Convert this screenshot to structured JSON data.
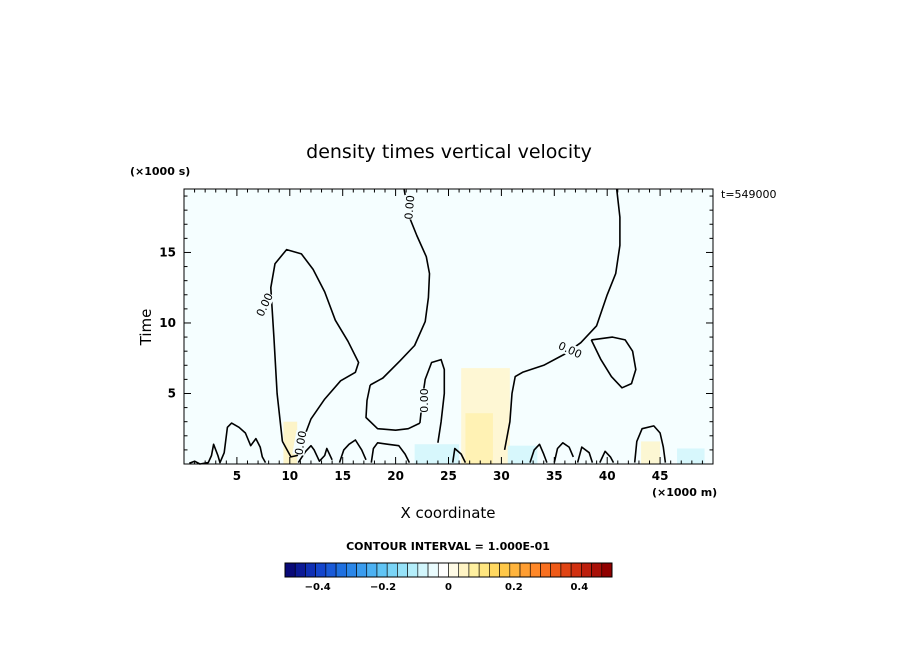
{
  "chart_data": {
    "type": "contour",
    "title": "density times vertical velocity",
    "xlabel": "X coordinate",
    "ylabel": "Time",
    "x_unit": "(×1000 m)",
    "y_unit": "(×1000 s)",
    "time_label": "t=549000",
    "xlim": [
      0,
      50
    ],
    "ylim": [
      0,
      19.5
    ],
    "x_ticks": [
      5,
      10,
      15,
      20,
      25,
      30,
      35,
      40,
      45
    ],
    "y_ticks": [
      5,
      10,
      15
    ],
    "x_tick_labels": [
      "5",
      "10",
      "15",
      "20",
      "25",
      "30",
      "35",
      "40",
      "45"
    ],
    "y_tick_labels": [
      "5",
      "10",
      "15"
    ],
    "contour_level_label": "0.00",
    "contour_interval_label": "CONTOUR INTERVAL = 1.000E-01",
    "background_color": "#f5feff",
    "colorbar": {
      "range": [
        -0.5,
        0.5
      ],
      "tick_values": [
        -0.4,
        -0.2,
        0,
        0.2,
        0.4
      ],
      "tick_labels": [
        "−0.4",
        "−0.2",
        "0",
        "0.2",
        "0.4"
      ],
      "colors": [
        "#0a0a78",
        "#0c1a96",
        "#0f2fb4",
        "#1445cc",
        "#1a5ad8",
        "#1f70e0",
        "#2a86e8",
        "#3a9cee",
        "#4cb1f2",
        "#60c4f4",
        "#7ad4f6",
        "#96e2f8",
        "#b4eefa",
        "#d2f6fc",
        "#eafcfe",
        "#ffffff",
        "#fffbe6",
        "#fff4c4",
        "#fff0a0",
        "#ffe680",
        "#ffd860",
        "#ffc848",
        "#ffb43c",
        "#ff9e32",
        "#ff8828",
        "#f87020",
        "#ee5a18",
        "#e04414",
        "#d03010",
        "#bc1e0c",
        "#a81008",
        "#900000"
      ]
    },
    "contours": [
      {
        "level": 0,
        "points": [
          [
            9.3,
            1.6
          ],
          [
            8.8,
            5
          ],
          [
            8.5,
            9
          ],
          [
            8.2,
            12.5
          ],
          [
            8.6,
            14.2
          ],
          [
            9.7,
            15.2
          ],
          [
            11.1,
            14.9
          ],
          [
            12.2,
            13.8
          ],
          [
            13.3,
            12.2
          ],
          [
            14.3,
            10.2
          ],
          [
            15.5,
            8.7
          ],
          [
            16.5,
            7.2
          ],
          [
            16.2,
            6.5
          ],
          [
            14.8,
            5.9
          ],
          [
            13.3,
            4.6
          ],
          [
            12,
            3.2
          ],
          [
            11.2,
            1.6
          ],
          [
            10.7,
            0.6
          ],
          [
            10.1,
            0.5
          ],
          [
            9.3,
            1.6
          ]
        ]
      },
      {
        "level": 0,
        "points": [
          [
            17.6,
            5.6
          ],
          [
            18.8,
            6.1
          ],
          [
            20.4,
            7.3
          ],
          [
            21.8,
            8.4
          ],
          [
            22.8,
            10.1
          ],
          [
            23.1,
            11.8
          ],
          [
            23.2,
            13.5
          ],
          [
            22.9,
            14.7
          ],
          [
            22.0,
            16.2
          ],
          [
            21.2,
            17.7
          ],
          [
            20.8,
            19.5
          ]
        ]
      },
      {
        "level": 0,
        "points": [
          [
            17.6,
            5.6
          ],
          [
            17.3,
            4.5
          ],
          [
            17.2,
            3.3
          ],
          [
            18.3,
            2.5
          ],
          [
            20.0,
            2.4
          ],
          [
            21.2,
            2.5
          ],
          [
            22.3,
            2.9
          ]
        ]
      },
      {
        "level": 0,
        "points": [
          [
            22.3,
            2.9
          ],
          [
            22.6,
            5.0
          ],
          [
            22.8,
            6.0
          ],
          [
            23.4,
            7.2
          ],
          [
            24.3,
            7.4
          ],
          [
            24.6,
            6.7
          ],
          [
            24.6,
            5.0
          ],
          [
            24.3,
            3.0
          ],
          [
            24.0,
            1.5
          ]
        ]
      },
      {
        "level": 0,
        "points": [
          [
            30.3,
            1.0
          ],
          [
            30.8,
            3.0
          ],
          [
            31.0,
            5.0
          ],
          [
            31.3,
            6.2
          ],
          [
            32.0,
            6.5
          ],
          [
            34.0,
            7.0
          ],
          [
            36.0,
            7.8
          ],
          [
            37.5,
            8.6
          ],
          [
            39.0,
            9.8
          ],
          [
            40.0,
            12.0
          ],
          [
            40.8,
            13.5
          ],
          [
            41.2,
            15.5
          ],
          [
            41.2,
            17.5
          ],
          [
            40.9,
            19.5
          ]
        ]
      },
      {
        "level": 0,
        "points": [
          [
            38.5,
            8.8
          ],
          [
            39.4,
            7.4
          ],
          [
            40.4,
            6.2
          ],
          [
            41.4,
            5.4
          ],
          [
            42.3,
            5.7
          ],
          [
            42.7,
            6.7
          ],
          [
            42.4,
            8.0
          ],
          [
            41.7,
            8.8
          ],
          [
            40.5,
            9.0
          ],
          [
            38.5,
            8.8
          ]
        ]
      },
      {
        "level": 0,
        "points": [
          [
            0.5,
            0.05
          ],
          [
            1.0,
            0.2
          ],
          [
            1.5,
            0
          ],
          [
            2.3,
            0.1
          ],
          [
            2.6,
            0.6
          ],
          [
            2.8,
            1.4
          ],
          [
            3.2,
            0.6
          ],
          [
            3.4,
            0.1
          ],
          [
            3.8,
            0.8
          ],
          [
            4.1,
            2.6
          ],
          [
            4.5,
            2.9
          ],
          [
            5.2,
            2.6
          ],
          [
            5.8,
            2.2
          ],
          [
            6.3,
            1.3
          ],
          [
            6.8,
            1.8
          ],
          [
            7.2,
            1.2
          ],
          [
            7.4,
            0.5
          ],
          [
            7.7,
            0.1
          ]
        ]
      },
      {
        "level": 0,
        "points": [
          [
            10.8,
            0.1
          ],
          [
            11.5,
            0.9
          ],
          [
            12.0,
            1.3
          ],
          [
            12.3,
            1.0
          ],
          [
            12.8,
            0.2
          ],
          [
            13.3,
            0.6
          ],
          [
            13.5,
            1.1
          ],
          [
            14.0,
            0.3
          ]
        ]
      },
      {
        "level": 0,
        "points": [
          [
            14.7,
            0.1
          ],
          [
            15.1,
            1.0
          ],
          [
            15.6,
            1.4
          ],
          [
            16.2,
            1.7
          ],
          [
            16.8,
            1.0
          ],
          [
            17.2,
            0.3
          ]
        ]
      },
      {
        "level": 0,
        "points": [
          [
            17.7,
            0.1
          ],
          [
            17.9,
            1.1
          ],
          [
            18.3,
            1.5
          ],
          [
            19.3,
            1.4
          ],
          [
            20.3,
            1.3
          ],
          [
            20.9,
            0.7
          ],
          [
            21.3,
            0.1
          ]
        ]
      },
      {
        "level": 0,
        "points": [
          [
            25.4,
            0.1
          ],
          [
            25.6,
            1.1
          ],
          [
            26.2,
            0.7
          ],
          [
            26.6,
            0.1
          ]
        ]
      },
      {
        "level": 0,
        "points": [
          [
            32.7,
            0.1
          ],
          [
            33.1,
            1.0
          ],
          [
            33.6,
            1.4
          ],
          [
            34.0,
            0.7
          ],
          [
            34.3,
            0.1
          ]
        ]
      },
      {
        "level": 0,
        "points": [
          [
            35.0,
            0.1
          ],
          [
            35.3,
            1.1
          ],
          [
            35.8,
            1.5
          ],
          [
            36.4,
            1.2
          ],
          [
            36.8,
            0.5
          ]
        ]
      },
      {
        "level": 0,
        "points": [
          [
            37.2,
            0.1
          ],
          [
            37.6,
            1.2
          ],
          [
            38.3,
            0.8
          ],
          [
            38.6,
            0.1
          ]
        ]
      },
      {
        "level": 0,
        "points": [
          [
            39.3,
            0.1
          ],
          [
            39.8,
            0.9
          ],
          [
            40.3,
            0.5
          ],
          [
            40.6,
            0.1
          ]
        ]
      },
      {
        "level": 0,
        "points": [
          [
            42.6,
            0.1
          ],
          [
            42.8,
            1.6
          ],
          [
            43.3,
            2.5
          ],
          [
            44.4,
            2.7
          ],
          [
            45.0,
            2.2
          ],
          [
            45.3,
            1.2
          ],
          [
            45.5,
            0.1
          ]
        ]
      }
    ],
    "contour_labels": [
      {
        "text": "0.00",
        "x": 7.6,
        "y": 11.3,
        "angle": 65
      },
      {
        "text": "0.00",
        "x": 11.0,
        "y": 1.5,
        "angle": 80
      },
      {
        "text": "0.00",
        "x": 21.3,
        "y": 18.2,
        "angle": 85
      },
      {
        "text": "0.00",
        "x": 22.7,
        "y": 4.5,
        "angle": 90
      },
      {
        "text": "0.00",
        "x": 36.5,
        "y": 8.1,
        "angle": -25
      }
    ],
    "shading": [
      {
        "x": [
          26.2,
          30.8
        ],
        "y": [
          0,
          6.8
        ],
        "color": "#fff6cc",
        "opacity": 0.85
      },
      {
        "x": [
          26.6,
          29.2
        ],
        "y": [
          0,
          3.6
        ],
        "color": "#fff0a6",
        "opacity": 0.7
      },
      {
        "x": [
          9.4,
          10.7
        ],
        "y": [
          0,
          3.0
        ],
        "color": "#fff0b0",
        "opacity": 0.7
      },
      {
        "x": [
          43.2,
          45.0
        ],
        "y": [
          0,
          1.6
        ],
        "color": "#fff4c0",
        "opacity": 0.7
      },
      {
        "x": [
          21.8,
          26.0
        ],
        "y": [
          0,
          1.4
        ],
        "color": "#d4f6fc",
        "opacity": 0.9
      },
      {
        "x": [
          30.6,
          33.4
        ],
        "y": [
          0,
          1.3
        ],
        "color": "#d4f6fc",
        "opacity": 0.9
      },
      {
        "x": [
          46.6,
          49.2
        ],
        "y": [
          0,
          1.1
        ],
        "color": "#d4f6fc",
        "opacity": 0.9
      }
    ]
  }
}
